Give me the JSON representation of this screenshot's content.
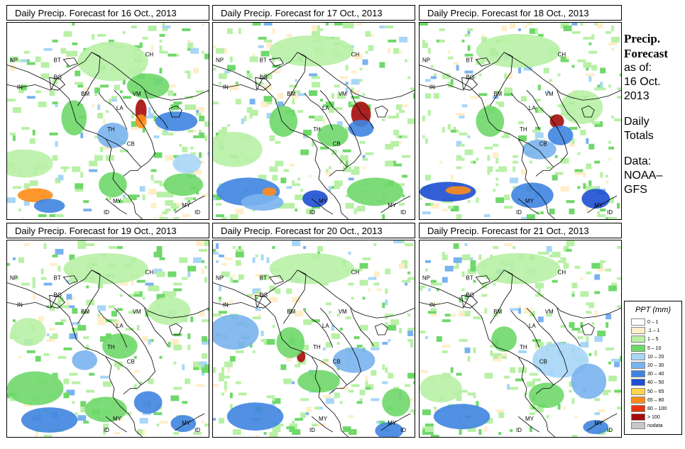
{
  "panels": [
    {
      "title": "Daily Precip. Forecast for  16 Oct., 2013"
    },
    {
      "title": "Daily Precip. Forecast for  17 Oct., 2013"
    },
    {
      "title": "Daily Precip. Forecast for  18 Oct., 2013"
    },
    {
      "title": "Daily Precip. Forecast for  19 Oct., 2013"
    },
    {
      "title": "Daily Precip. Forecast for  20 Oct., 2013"
    },
    {
      "title": "Daily Precip. Forecast for  21 Oct., 2013"
    }
  ],
  "country_labels": [
    "NP",
    "BT",
    "BG",
    "IN",
    "BM",
    "CH",
    "VM",
    "LA",
    "TH",
    "CB",
    "MY",
    "ID",
    "MY",
    "ID"
  ],
  "sidebar": {
    "heading1": "Precip.",
    "heading2": "Forecast",
    "asof": "as of:",
    "date1": "16 Oct.",
    "date2": "2013",
    "daily1": "Daily",
    "daily2": "Totals",
    "data1": "Data:",
    "data2": "NOAA–",
    "data3": "GFS"
  },
  "legend": {
    "title": "PPT (mm)",
    "items": [
      {
        "label": "0 – 1",
        "color": "#ffffff"
      },
      {
        "label": ".1 – 1",
        "color": "#ffeec9"
      },
      {
        "label": "1 – 5",
        "color": "#b8f0a6"
      },
      {
        "label": "5 – 10",
        "color": "#6fd86a"
      },
      {
        "label": "10 – 20",
        "color": "#a7d6f7"
      },
      {
        "label": "20 – 30",
        "color": "#7ab2ee"
      },
      {
        "label": "30 – 40",
        "color": "#3f84e0"
      },
      {
        "label": "40 – 50",
        "color": "#1d4fd1"
      },
      {
        "label": "50 – 65",
        "color": "#ffd54a"
      },
      {
        "label": "65 – 80",
        "color": "#ff8c1a"
      },
      {
        "label": "80 – 100",
        "color": "#e8330f"
      },
      {
        "label": "> 100",
        "color": "#a50b0b"
      },
      {
        "label": "nodata",
        "color": "#c8c8c8"
      }
    ]
  }
}
